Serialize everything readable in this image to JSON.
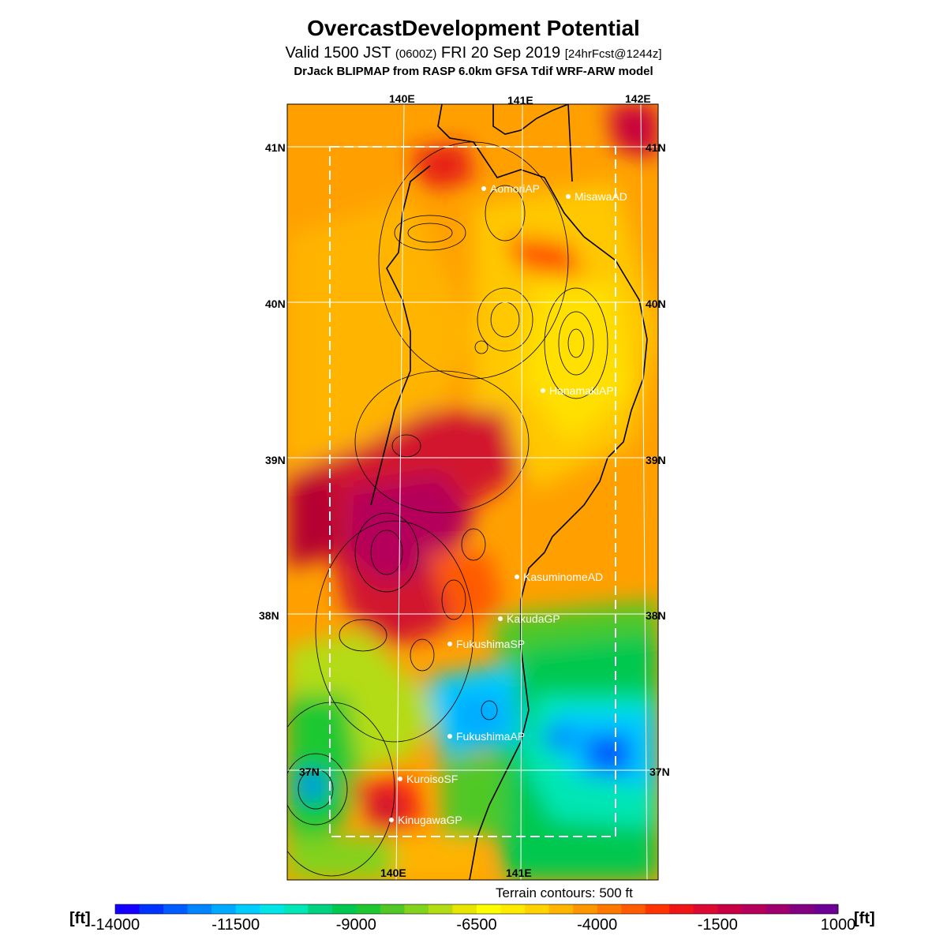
{
  "title": "OvercastDevelopment Potential",
  "subtitle": {
    "main_a": "Valid 1500 JST ",
    "main_z": "(0600Z)",
    "main_b": " FRI 20 Sep 2019 ",
    "fcst": "[24hrFcst@1244z]"
  },
  "model_line": "DrJack BLIPMAP from RASP 6.0km GFSA Tdif WRF-ARW model",
  "axes": {
    "lon_labels_top": [
      "140E",
      "141E",
      "142E"
    ],
    "lon_labels_bottom": [
      "140E",
      "141E"
    ],
    "lat_labels_left": [
      "41N",
      "40N",
      "39N",
      "38N",
      "37N"
    ],
    "lat_labels_right": [
      "41N",
      "40N",
      "39N",
      "38N",
      "37N"
    ]
  },
  "stations": [
    {
      "name": "AomoriAP"
    },
    {
      "name": "MisawaAD"
    },
    {
      "name": "HanamakiAP"
    },
    {
      "name": "KasuminomeAD"
    },
    {
      "name": "KakudaGP"
    },
    {
      "name": "FukushimaSP"
    },
    {
      "name": "FukushimaAP"
    },
    {
      "name": "KuroisoSF"
    },
    {
      "name": "KinugawaGP"
    }
  ],
  "terrain_note": "Terrain contours: 500 ft",
  "colorbar": {
    "unit_left": "[ft]",
    "unit_right": "[ft]",
    "tick_labels": [
      "-14000",
      "-11500",
      "-9000",
      "-6500",
      "-4000",
      "-1500",
      "1000"
    ],
    "colors": [
      "#1400ff",
      "#0033ff",
      "#005cff",
      "#0085ff",
      "#00aaff",
      "#00ccff",
      "#00e6e6",
      "#00e6b4",
      "#00d282",
      "#00c850",
      "#1ec832",
      "#50c828",
      "#82d21e",
      "#b4dc14",
      "#e6e600",
      "#ffff00",
      "#ffeb00",
      "#ffd200",
      "#ffb400",
      "#ff9600",
      "#ff7800",
      "#ff5a00",
      "#ff3200",
      "#f01414",
      "#dc0a32",
      "#c80046",
      "#b4005a",
      "#a0006e",
      "#820082",
      "#6e0096"
    ]
  }
}
